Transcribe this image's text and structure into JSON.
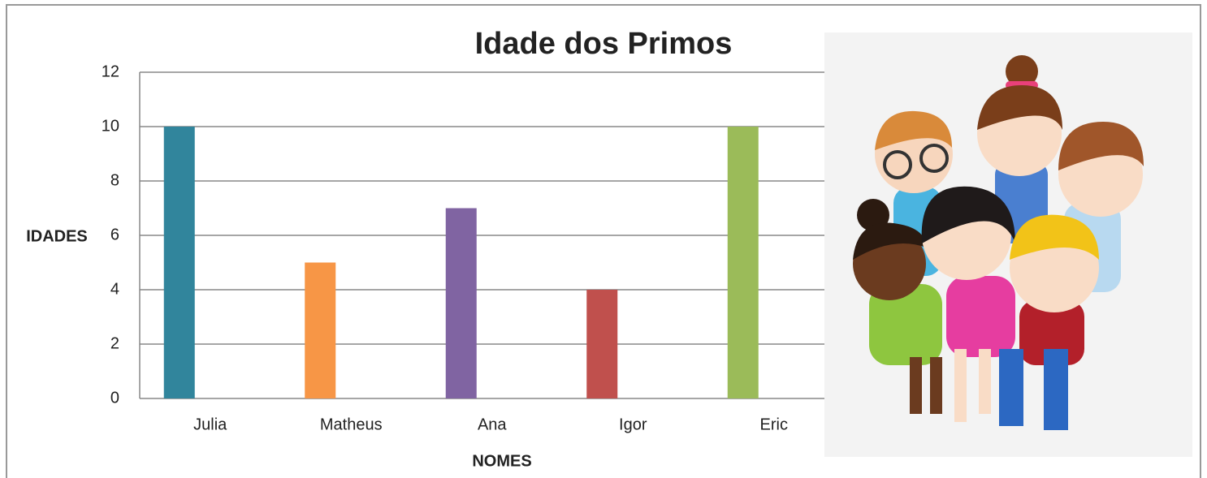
{
  "chart_data": {
    "type": "bar",
    "title": "Idade dos Primos",
    "x_label": "NOMES",
    "y_label": "IDADES",
    "categories": [
      "Julia",
      "Matheus",
      "Ana",
      "Igor",
      "Eric"
    ],
    "values": [
      10,
      5,
      7,
      4,
      10
    ],
    "colors": [
      "#31859c",
      "#f79646",
      "#8064a2",
      "#c0504d",
      "#9bbb59"
    ],
    "ylim": [
      0,
      12
    ],
    "yticks": [
      0,
      2,
      4,
      6,
      8,
      10,
      12
    ],
    "grid": true
  }
}
